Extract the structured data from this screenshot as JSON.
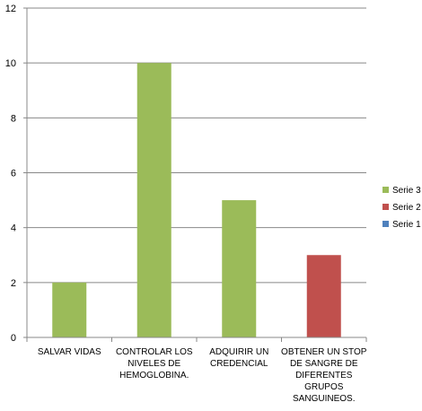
{
  "chart_data": {
    "type": "bar",
    "categories": [
      [
        "SALVAR VIDAS"
      ],
      [
        "CONTROLAR LOS",
        "NIVELES DE",
        "HEMOGLOBINA."
      ],
      [
        "ADQUIRIR UN",
        "CREDENCIAL"
      ],
      [
        "OBTENER UN STOP",
        "DE SANGRE DE",
        "DIFERENTES",
        "GRUPOS",
        "SANGUINEOS."
      ]
    ],
    "series": [
      {
        "name": "Serie 1",
        "color": "#4f81bd",
        "values": [
          0,
          0,
          0,
          0
        ]
      },
      {
        "name": "Serie 2",
        "color": "#c0504d",
        "values": [
          0,
          0,
          0,
          3
        ]
      },
      {
        "name": "Serie 3",
        "color": "#9bbb59",
        "values": [
          2,
          10,
          5,
          0
        ]
      }
    ],
    "ylim": [
      0,
      12
    ],
    "yticks": [
      0,
      2,
      4,
      6,
      8,
      10,
      12
    ],
    "grid": true,
    "legend_placement": "right"
  }
}
